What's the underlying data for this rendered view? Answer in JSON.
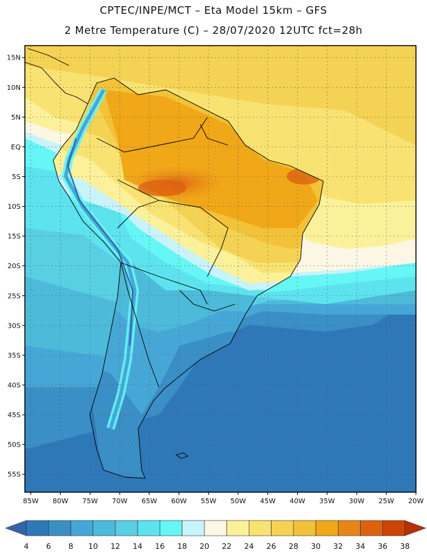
{
  "header": {
    "line1": "CPTEC/INPE/MCT –  Eta Model 15km – GFS",
    "line2": "2 Metre Temperature (C) – 28/07/2020 12UTC fct=28h"
  },
  "map": {
    "lat_labels": [
      "15N",
      "10N",
      "5N",
      "EQ",
      "5S",
      "10S",
      "15S",
      "20S",
      "25S",
      "30S",
      "35S",
      "40S",
      "45S",
      "50S",
      "55S"
    ],
    "lat_values": [
      15,
      10,
      5,
      0,
      -5,
      -10,
      -15,
      -20,
      -25,
      -30,
      -35,
      -40,
      -45,
      -50,
      -55
    ],
    "lon_labels": [
      "85W",
      "80W",
      "75W",
      "70W",
      "65W",
      "60W",
      "55W",
      "50W",
      "45W",
      "40W",
      "35W",
      "30W",
      "25W",
      "20W"
    ],
    "lon_values": [
      -85,
      -80,
      -75,
      -70,
      -65,
      -60,
      -55,
      -50,
      -45,
      -40,
      -35,
      -30,
      -25,
      -20
    ],
    "lat_range": [
      -58,
      17
    ],
    "lon_range": [
      -86,
      -20
    ]
  },
  "colorbar": {
    "levels": [
      "4",
      "6",
      "8",
      "10",
      "12",
      "14",
      "16",
      "18",
      "20",
      "22",
      "24",
      "26",
      "28",
      "30",
      "32",
      "34",
      "36",
      "38"
    ],
    "colors": [
      "#3464a8",
      "#2f78b8",
      "#3a8fc6",
      "#46a7d6",
      "#4dbad9",
      "#59cfe3",
      "#5de3ee",
      "#66f6f6",
      "#c9f3fa",
      "#fbf7e4",
      "#fbf19a",
      "#f8e372",
      "#f4d253",
      "#f2c238",
      "#f0a818",
      "#e6861a",
      "#dd6210",
      "#cc4406",
      "#b83000"
    ]
  }
}
